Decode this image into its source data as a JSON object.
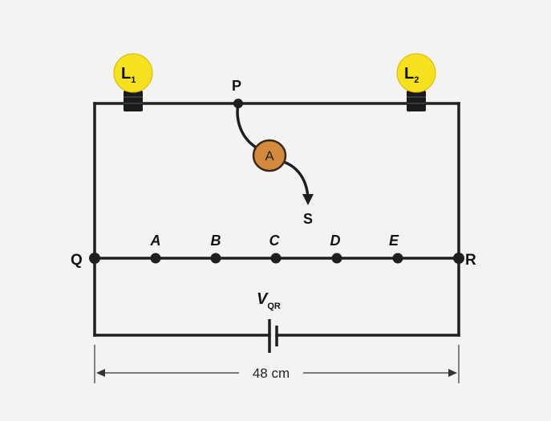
{
  "bulbs": [
    {
      "letter": "L",
      "sub": "1",
      "color": "#f5e11e"
    },
    {
      "letter": "L",
      "sub": "2",
      "color": "#f5e11e"
    }
  ],
  "nodes": {
    "P": "P",
    "S": "S",
    "Q": "Q",
    "R": "R"
  },
  "points": [
    "A",
    "B",
    "C",
    "D",
    "E"
  ],
  "ammeter": {
    "label": "A",
    "color": "#d48a3c"
  },
  "battery": {
    "label": "V",
    "sub": "QR"
  },
  "length": {
    "value": "48 cm"
  }
}
